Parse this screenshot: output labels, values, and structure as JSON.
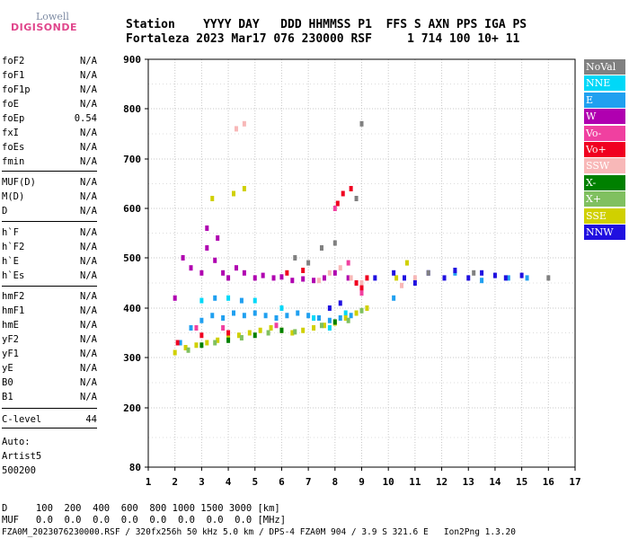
{
  "logo": {
    "top": "Lowell",
    "main": "DIGISONDE"
  },
  "header": {
    "line1": "Station    YYYY DAY   DDD HHMMSS P1  FFS S AXN PPS IGA PS",
    "line2": "Fortaleza 2023 Mar17 076 230000 RSF     1 714 100 10+ 11"
  },
  "params": [
    {
      "label": "foF2",
      "value": "N/A"
    },
    {
      "label": "foF1",
      "value": "N/A"
    },
    {
      "label": "foF1p",
      "value": "N/A"
    },
    {
      "label": "foE",
      "value": "N/A"
    },
    {
      "label": "foEp",
      "value": "0.54"
    },
    {
      "label": "fxI",
      "value": "N/A"
    },
    {
      "label": "foEs",
      "value": "N/A"
    },
    {
      "label": "fmin",
      "value": "N/A"
    },
    {
      "label": "MUF(D)",
      "value": "N/A"
    },
    {
      "label": "M(D)",
      "value": "N/A"
    },
    {
      "label": "D",
      "value": "N/A"
    },
    {
      "label": "h`F",
      "value": "N/A"
    },
    {
      "label": "h`F2",
      "value": "N/A"
    },
    {
      "label": "h`E",
      "value": "N/A"
    },
    {
      "label": "h`Es",
      "value": "N/A"
    },
    {
      "label": "hmF2",
      "value": "N/A"
    },
    {
      "label": "hmF1",
      "value": "N/A"
    },
    {
      "label": "hmE",
      "value": "N/A"
    },
    {
      "label": "yF2",
      "value": "N/A"
    },
    {
      "label": "yF1",
      "value": "N/A"
    },
    {
      "label": "yE",
      "value": "N/A"
    },
    {
      "label": "B0",
      "value": "N/A"
    },
    {
      "label": "B1",
      "value": "N/A"
    },
    {
      "label": "C-level",
      "value": "44"
    }
  ],
  "auto": {
    "line1": "Auto:",
    "line2": "Artist5",
    "line3": "500200"
  },
  "legend": [
    {
      "label": "NoVal",
      "color": "#808080"
    },
    {
      "label": "NNE",
      "color": "#00d8f8"
    },
    {
      "label": "E",
      "color": "#20a0f0"
    },
    {
      "label": "W",
      "color": "#b000b0"
    },
    {
      "label": "Vo-",
      "color": "#f040a0"
    },
    {
      "label": "Vo+",
      "color": "#f00020"
    },
    {
      "label": "SSW",
      "color": "#f8b8b8"
    },
    {
      "label": "X-",
      "color": "#008000"
    },
    {
      "label": "X+",
      "color": "#80c060"
    },
    {
      "label": "SSE",
      "color": "#d0d000"
    },
    {
      "label": "NNW",
      "color": "#2010e0"
    }
  ],
  "footer": {
    "line1": "D     100  200  400  600  800 1000 1500 3000 [km]",
    "line2": "MUF   0.0  0.0  0.0  0.0  0.0  0.0  0.0  0.0 [MHz]",
    "line3": "FZA0M_2023076230000.RSF / 320fx256h 50 kHz 5.0 km / DPS-4 FZA0M 904 / 3.9 S 321.6 E   Ion2Png 1.3.20"
  },
  "chart_data": {
    "type": "scatter",
    "xlim": [
      1,
      17
    ],
    "ylim": [
      80,
      900
    ],
    "x_ticks": [
      1,
      2,
      3,
      4,
      5,
      6,
      7,
      8,
      9,
      10,
      11,
      12,
      13,
      14,
      15,
      16,
      17
    ],
    "y_ticks": [
      80,
      200,
      300,
      400,
      500,
      600,
      700,
      800,
      900
    ],
    "grid": true,
    "legend_position": "right",
    "series": [
      {
        "name": "W",
        "color": "#b000b0",
        "points": [
          [
            2.0,
            420
          ],
          [
            2.3,
            500
          ],
          [
            2.6,
            480
          ],
          [
            3.0,
            470
          ],
          [
            3.2,
            520
          ],
          [
            3.5,
            495
          ],
          [
            3.8,
            470
          ],
          [
            4.0,
            460
          ],
          [
            4.3,
            480
          ],
          [
            4.6,
            470
          ],
          [
            5.0,
            460
          ],
          [
            5.3,
            465
          ],
          [
            5.7,
            460
          ],
          [
            6.0,
            462
          ],
          [
            6.4,
            455
          ],
          [
            6.8,
            458
          ],
          [
            7.2,
            455
          ],
          [
            7.6,
            460
          ],
          [
            8.0,
            470
          ],
          [
            8.5,
            460
          ],
          [
            9.0,
            450
          ],
          [
            3.2,
            560
          ],
          [
            3.6,
            540
          ]
        ]
      },
      {
        "name": "E",
        "color": "#20a0f0",
        "points": [
          [
            2.2,
            330
          ],
          [
            2.6,
            360
          ],
          [
            3.0,
            375
          ],
          [
            3.4,
            385
          ],
          [
            3.8,
            380
          ],
          [
            4.2,
            390
          ],
          [
            4.6,
            385
          ],
          [
            5.0,
            390
          ],
          [
            5.4,
            385
          ],
          [
            5.8,
            380
          ],
          [
            6.2,
            385
          ],
          [
            6.6,
            390
          ],
          [
            7.0,
            385
          ],
          [
            7.4,
            380
          ],
          [
            7.8,
            375
          ],
          [
            8.2,
            380
          ],
          [
            8.6,
            385
          ],
          [
            3.5,
            420
          ],
          [
            4.5,
            415
          ],
          [
            10.2,
            420
          ],
          [
            12.5,
            470
          ],
          [
            13.5,
            455
          ],
          [
            14.5,
            460
          ],
          [
            15.2,
            460
          ]
        ]
      },
      {
        "name": "NNE",
        "color": "#00d8f8",
        "points": [
          [
            3.0,
            415
          ],
          [
            4.0,
            420
          ],
          [
            5.0,
            415
          ],
          [
            6.0,
            400
          ],
          [
            7.2,
            380
          ],
          [
            7.8,
            360
          ],
          [
            8.4,
            390
          ]
        ]
      },
      {
        "name": "SSE",
        "color": "#d0d000",
        "points": [
          [
            2.0,
            310
          ],
          [
            2.4,
            320
          ],
          [
            2.8,
            325
          ],
          [
            3.2,
            330
          ],
          [
            3.6,
            335
          ],
          [
            4.0,
            340
          ],
          [
            4.4,
            345
          ],
          [
            4.8,
            350
          ],
          [
            5.2,
            355
          ],
          [
            5.6,
            360
          ],
          [
            6.0,
            355
          ],
          [
            6.4,
            350
          ],
          [
            6.8,
            355
          ],
          [
            7.2,
            360
          ],
          [
            7.6,
            365
          ],
          [
            8.0,
            370
          ],
          [
            8.4,
            380
          ],
          [
            8.8,
            390
          ],
          [
            9.2,
            400
          ],
          [
            10.3,
            460
          ],
          [
            10.7,
            490
          ],
          [
            4.2,
            630
          ],
          [
            4.6,
            640
          ],
          [
            3.4,
            620
          ]
        ]
      },
      {
        "name": "X+",
        "color": "#80c060",
        "points": [
          [
            2.5,
            315
          ],
          [
            3.5,
            330
          ],
          [
            4.5,
            340
          ],
          [
            5.5,
            350
          ],
          [
            6.5,
            352
          ],
          [
            7.5,
            365
          ],
          [
            8.5,
            375
          ],
          [
            9.0,
            395
          ]
        ]
      },
      {
        "name": "X-",
        "color": "#008000",
        "points": [
          [
            3.0,
            325
          ],
          [
            4.0,
            335
          ],
          [
            5.0,
            345
          ],
          [
            6.0,
            355
          ],
          [
            8.0,
            372
          ]
        ]
      },
      {
        "name": "SSW",
        "color": "#f8b8b8",
        "points": [
          [
            4.3,
            760
          ],
          [
            4.6,
            770
          ],
          [
            7.8,
            470
          ],
          [
            8.2,
            480
          ],
          [
            8.6,
            460
          ],
          [
            9.0,
            450
          ],
          [
            7.4,
            455
          ],
          [
            10.5,
            445
          ],
          [
            11.0,
            460
          ]
        ]
      },
      {
        "name": "Vo+",
        "color": "#f00020",
        "points": [
          [
            2.1,
            330
          ],
          [
            3.0,
            345
          ],
          [
            4.0,
            350
          ],
          [
            8.1,
            610
          ],
          [
            8.3,
            630
          ],
          [
            8.6,
            640
          ],
          [
            8.8,
            450
          ],
          [
            9.0,
            440
          ],
          [
            9.2,
            460
          ],
          [
            6.2,
            470
          ],
          [
            6.8,
            475
          ]
        ]
      },
      {
        "name": "Vo-",
        "color": "#f040a0",
        "points": [
          [
            2.8,
            360
          ],
          [
            3.8,
            360
          ],
          [
            5.8,
            365
          ],
          [
            8.0,
            600
          ],
          [
            8.5,
            490
          ],
          [
            9.0,
            430
          ]
        ]
      },
      {
        "name": "NNW",
        "color": "#2010e0",
        "points": [
          [
            7.8,
            400
          ],
          [
            8.2,
            410
          ],
          [
            10.2,
            470
          ],
          [
            10.6,
            460
          ],
          [
            11.0,
            450
          ],
          [
            11.5,
            470
          ],
          [
            12.1,
            460
          ],
          [
            12.5,
            475
          ],
          [
            13.0,
            460
          ],
          [
            13.5,
            470
          ],
          [
            14.0,
            465
          ],
          [
            14.4,
            460
          ],
          [
            15.0,
            465
          ],
          [
            9.5,
            460
          ]
        ]
      },
      {
        "name": "NoVal",
        "color": "#808080",
        "points": [
          [
            6.5,
            500
          ],
          [
            7.0,
            490
          ],
          [
            7.5,
            520
          ],
          [
            8.0,
            530
          ],
          [
            8.8,
            620
          ],
          [
            9.0,
            770
          ],
          [
            11.5,
            470
          ],
          [
            13.2,
            470
          ],
          [
            16.0,
            460
          ]
        ]
      }
    ]
  }
}
